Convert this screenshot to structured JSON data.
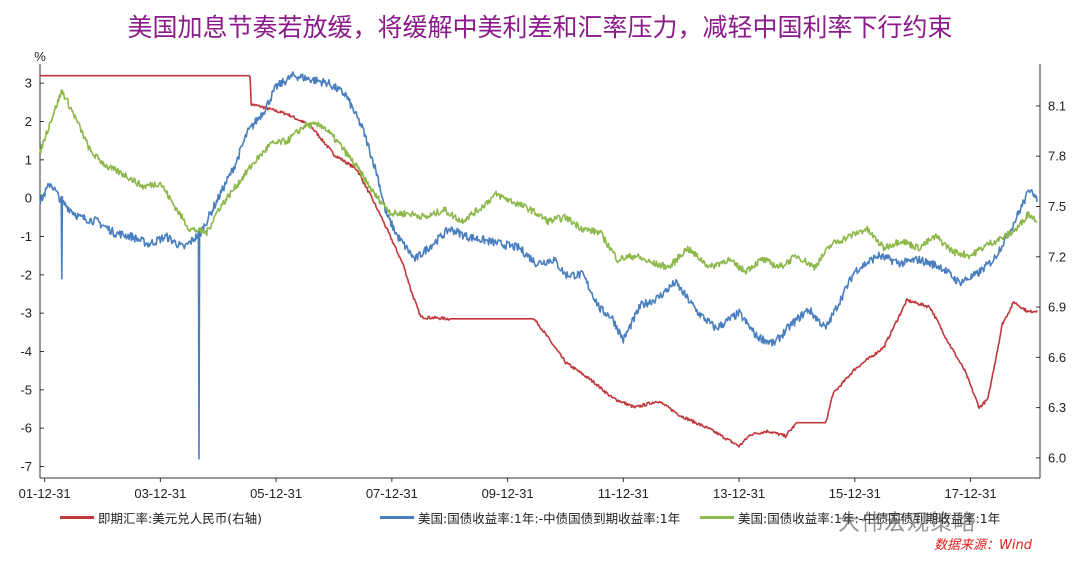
{
  "title": "美国加息节奏若放缓，将缓解中美利差和汇率压力，减轻中国利率下行约束",
  "source": "数据来源：Wind",
  "watermark": "大伟宏观策略",
  "colors": {
    "red": "#c0383c",
    "blue": "#4a7fbf",
    "green": "#8db84a",
    "title": "#8b1a8b"
  },
  "chart_data": {
    "type": "line",
    "left_axis": {
      "unit": "%",
      "ylim": [
        -7.3,
        3.5
      ],
      "ticks": [
        3,
        2,
        1,
        0,
        -1,
        -2,
        -3,
        -4,
        -5,
        -6,
        -7
      ]
    },
    "right_axis": {
      "ylim": [
        5.88,
        8.35
      ],
      "ticks": [
        8.1,
        7.8,
        7.5,
        7.2,
        6.9,
        6.6,
        6.3,
        6.0
      ]
    },
    "xlim": [
      2001.92,
      2019.2
    ],
    "x_ticks": [
      "01-12-31",
      "03-12-31",
      "05-12-31",
      "07-12-31",
      "09-12-31",
      "11-12-31",
      "13-12-31",
      "15-12-31",
      "17-12-31"
    ],
    "x_tick_values": [
      2002.0,
      2004.0,
      2006.0,
      2008.0,
      2010.0,
      2012.0,
      2014.0,
      2016.0,
      2018.0
    ],
    "series": [
      {
        "name": "即期汇率:美元兑人民币(右轴)",
        "axis": "right",
        "color": "#c0383c",
        "points": [
          [
            2001.92,
            8.28
          ],
          [
            2005.55,
            8.28
          ],
          [
            2005.57,
            8.11
          ],
          [
            2005.8,
            8.09
          ],
          [
            2006.2,
            8.05
          ],
          [
            2006.6,
            7.98
          ],
          [
            2007.0,
            7.81
          ],
          [
            2007.4,
            7.72
          ],
          [
            2007.8,
            7.45
          ],
          [
            2008.0,
            7.3
          ],
          [
            2008.2,
            7.15
          ],
          [
            2008.35,
            6.98
          ],
          [
            2008.5,
            6.84
          ],
          [
            2009.0,
            6.83
          ],
          [
            2009.5,
            6.83
          ],
          [
            2010.0,
            6.83
          ],
          [
            2010.45,
            6.83
          ],
          [
            2010.55,
            6.79
          ],
          [
            2011.0,
            6.57
          ],
          [
            2011.5,
            6.45
          ],
          [
            2011.8,
            6.36
          ],
          [
            2012.2,
            6.3
          ],
          [
            2012.6,
            6.34
          ],
          [
            2013.0,
            6.25
          ],
          [
            2013.5,
            6.17
          ],
          [
            2014.0,
            6.07
          ],
          [
            2014.2,
            6.14
          ],
          [
            2014.5,
            6.16
          ],
          [
            2014.8,
            6.13
          ],
          [
            2015.0,
            6.21
          ],
          [
            2015.5,
            6.21
          ],
          [
            2015.62,
            6.38
          ],
          [
            2016.0,
            6.53
          ],
          [
            2016.5,
            6.66
          ],
          [
            2016.9,
            6.94
          ],
          [
            2017.3,
            6.9
          ],
          [
            2017.6,
            6.7
          ],
          [
            2017.9,
            6.52
          ],
          [
            2018.15,
            6.3
          ],
          [
            2018.3,
            6.35
          ],
          [
            2018.55,
            6.8
          ],
          [
            2018.75,
            6.93
          ],
          [
            2019.0,
            6.87
          ],
          [
            2019.15,
            6.88
          ]
        ]
      },
      {
        "name": "美国:国债收益率:1年:-中债国债到期收益率:1年",
        "axis": "left",
        "color": "#4a7fbf",
        "points": [
          [
            2001.92,
            -0.1
          ],
          [
            2002.1,
            0.4
          ],
          [
            2002.3,
            -0.1
          ],
          [
            2002.6,
            -0.5
          ],
          [
            2002.9,
            -0.6
          ],
          [
            2003.2,
            -0.9
          ],
          [
            2003.5,
            -1.0
          ],
          [
            2003.8,
            -1.2
          ],
          [
            2004.1,
            -1.0
          ],
          [
            2004.4,
            -1.3
          ],
          [
            2004.7,
            -0.9
          ],
          [
            2005.0,
            0.0
          ],
          [
            2005.3,
            0.9
          ],
          [
            2005.5,
            1.7
          ],
          [
            2005.8,
            2.3
          ],
          [
            2006.0,
            2.9
          ],
          [
            2006.3,
            3.2
          ],
          [
            2006.6,
            3.1
          ],
          [
            2006.9,
            3.0
          ],
          [
            2007.2,
            2.7
          ],
          [
            2007.5,
            1.8
          ],
          [
            2007.75,
            0.6
          ],
          [
            2007.9,
            -0.4
          ],
          [
            2008.1,
            -1.0
          ],
          [
            2008.4,
            -1.6
          ],
          [
            2008.7,
            -1.2
          ],
          [
            2009.0,
            -0.8
          ],
          [
            2009.3,
            -1.0
          ],
          [
            2009.6,
            -1.1
          ],
          [
            2009.9,
            -1.2
          ],
          [
            2010.2,
            -1.3
          ],
          [
            2010.5,
            -1.7
          ],
          [
            2010.8,
            -1.6
          ],
          [
            2011.0,
            -2.0
          ],
          [
            2011.3,
            -2.0
          ],
          [
            2011.6,
            -2.9
          ],
          [
            2011.8,
            -3.1
          ],
          [
            2012.0,
            -3.7
          ],
          [
            2012.3,
            -2.8
          ],
          [
            2012.6,
            -2.6
          ],
          [
            2012.9,
            -2.2
          ],
          [
            2013.3,
            -3.0
          ],
          [
            2013.6,
            -3.4
          ],
          [
            2014.0,
            -3.0
          ],
          [
            2014.3,
            -3.6
          ],
          [
            2014.6,
            -3.8
          ],
          [
            2014.9,
            -3.3
          ],
          [
            2015.2,
            -2.9
          ],
          [
            2015.5,
            -3.4
          ],
          [
            2015.8,
            -2.5
          ],
          [
            2016.0,
            -1.9
          ],
          [
            2016.4,
            -1.5
          ],
          [
            2016.8,
            -1.7
          ],
          [
            2017.1,
            -1.6
          ],
          [
            2017.5,
            -1.8
          ],
          [
            2017.8,
            -2.2
          ],
          [
            2018.1,
            -2.0
          ],
          [
            2018.4,
            -1.6
          ],
          [
            2018.7,
            -0.8
          ],
          [
            2018.95,
            0.0
          ],
          [
            2019.05,
            0.3
          ],
          [
            2019.15,
            -0.1
          ]
        ]
      },
      {
        "name": "美国:国债收益率:1年:-中债国债到期收益率:1年",
        "axis": "left",
        "color": "#8db84a",
        "points": [
          [
            2001.92,
            1.2
          ],
          [
            2002.1,
            2.0
          ],
          [
            2002.3,
            2.8
          ],
          [
            2002.5,
            2.2
          ],
          [
            2002.8,
            1.2
          ],
          [
            2003.1,
            0.8
          ],
          [
            2003.4,
            0.6
          ],
          [
            2003.7,
            0.3
          ],
          [
            2004.0,
            0.4
          ],
          [
            2004.2,
            -0.1
          ],
          [
            2004.5,
            -0.8
          ],
          [
            2004.8,
            -0.9
          ],
          [
            2005.0,
            -0.3
          ],
          [
            2005.3,
            0.3
          ],
          [
            2005.6,
            0.9
          ],
          [
            2005.9,
            1.4
          ],
          [
            2006.2,
            1.5
          ],
          [
            2006.5,
            1.9
          ],
          [
            2006.8,
            1.9
          ],
          [
            2007.1,
            1.4
          ],
          [
            2007.4,
            0.8
          ],
          [
            2007.7,
            0.1
          ],
          [
            2008.0,
            -0.4
          ],
          [
            2008.3,
            -0.4
          ],
          [
            2008.6,
            -0.5
          ],
          [
            2008.9,
            -0.3
          ],
          [
            2009.2,
            -0.6
          ],
          [
            2009.5,
            -0.3
          ],
          [
            2009.8,
            0.1
          ],
          [
            2010.1,
            -0.1
          ],
          [
            2010.4,
            -0.3
          ],
          [
            2010.7,
            -0.6
          ],
          [
            2011.0,
            -0.5
          ],
          [
            2011.3,
            -0.8
          ],
          [
            2011.6,
            -0.9
          ],
          [
            2011.9,
            -1.6
          ],
          [
            2012.2,
            -1.5
          ],
          [
            2012.5,
            -1.7
          ],
          [
            2012.8,
            -1.8
          ],
          [
            2013.1,
            -1.3
          ],
          [
            2013.5,
            -1.8
          ],
          [
            2013.8,
            -1.6
          ],
          [
            2014.1,
            -1.9
          ],
          [
            2014.4,
            -1.6
          ],
          [
            2014.7,
            -1.8
          ],
          [
            2015.0,
            -1.5
          ],
          [
            2015.3,
            -1.8
          ],
          [
            2015.6,
            -1.2
          ],
          [
            2015.9,
            -1.0
          ],
          [
            2016.2,
            -0.8
          ],
          [
            2016.5,
            -1.3
          ],
          [
            2016.8,
            -1.1
          ],
          [
            2017.1,
            -1.3
          ],
          [
            2017.4,
            -1.0
          ],
          [
            2017.7,
            -1.4
          ],
          [
            2018.0,
            -1.5
          ],
          [
            2018.3,
            -1.2
          ],
          [
            2018.6,
            -1.0
          ],
          [
            2018.8,
            -0.8
          ],
          [
            2019.0,
            -0.4
          ],
          [
            2019.15,
            -0.6
          ]
        ]
      }
    ],
    "spikes": [
      {
        "series": 1,
        "x": 2002.28,
        "y": -2.1
      },
      {
        "series": 1,
        "x": 2004.65,
        "y": -6.8
      }
    ]
  }
}
